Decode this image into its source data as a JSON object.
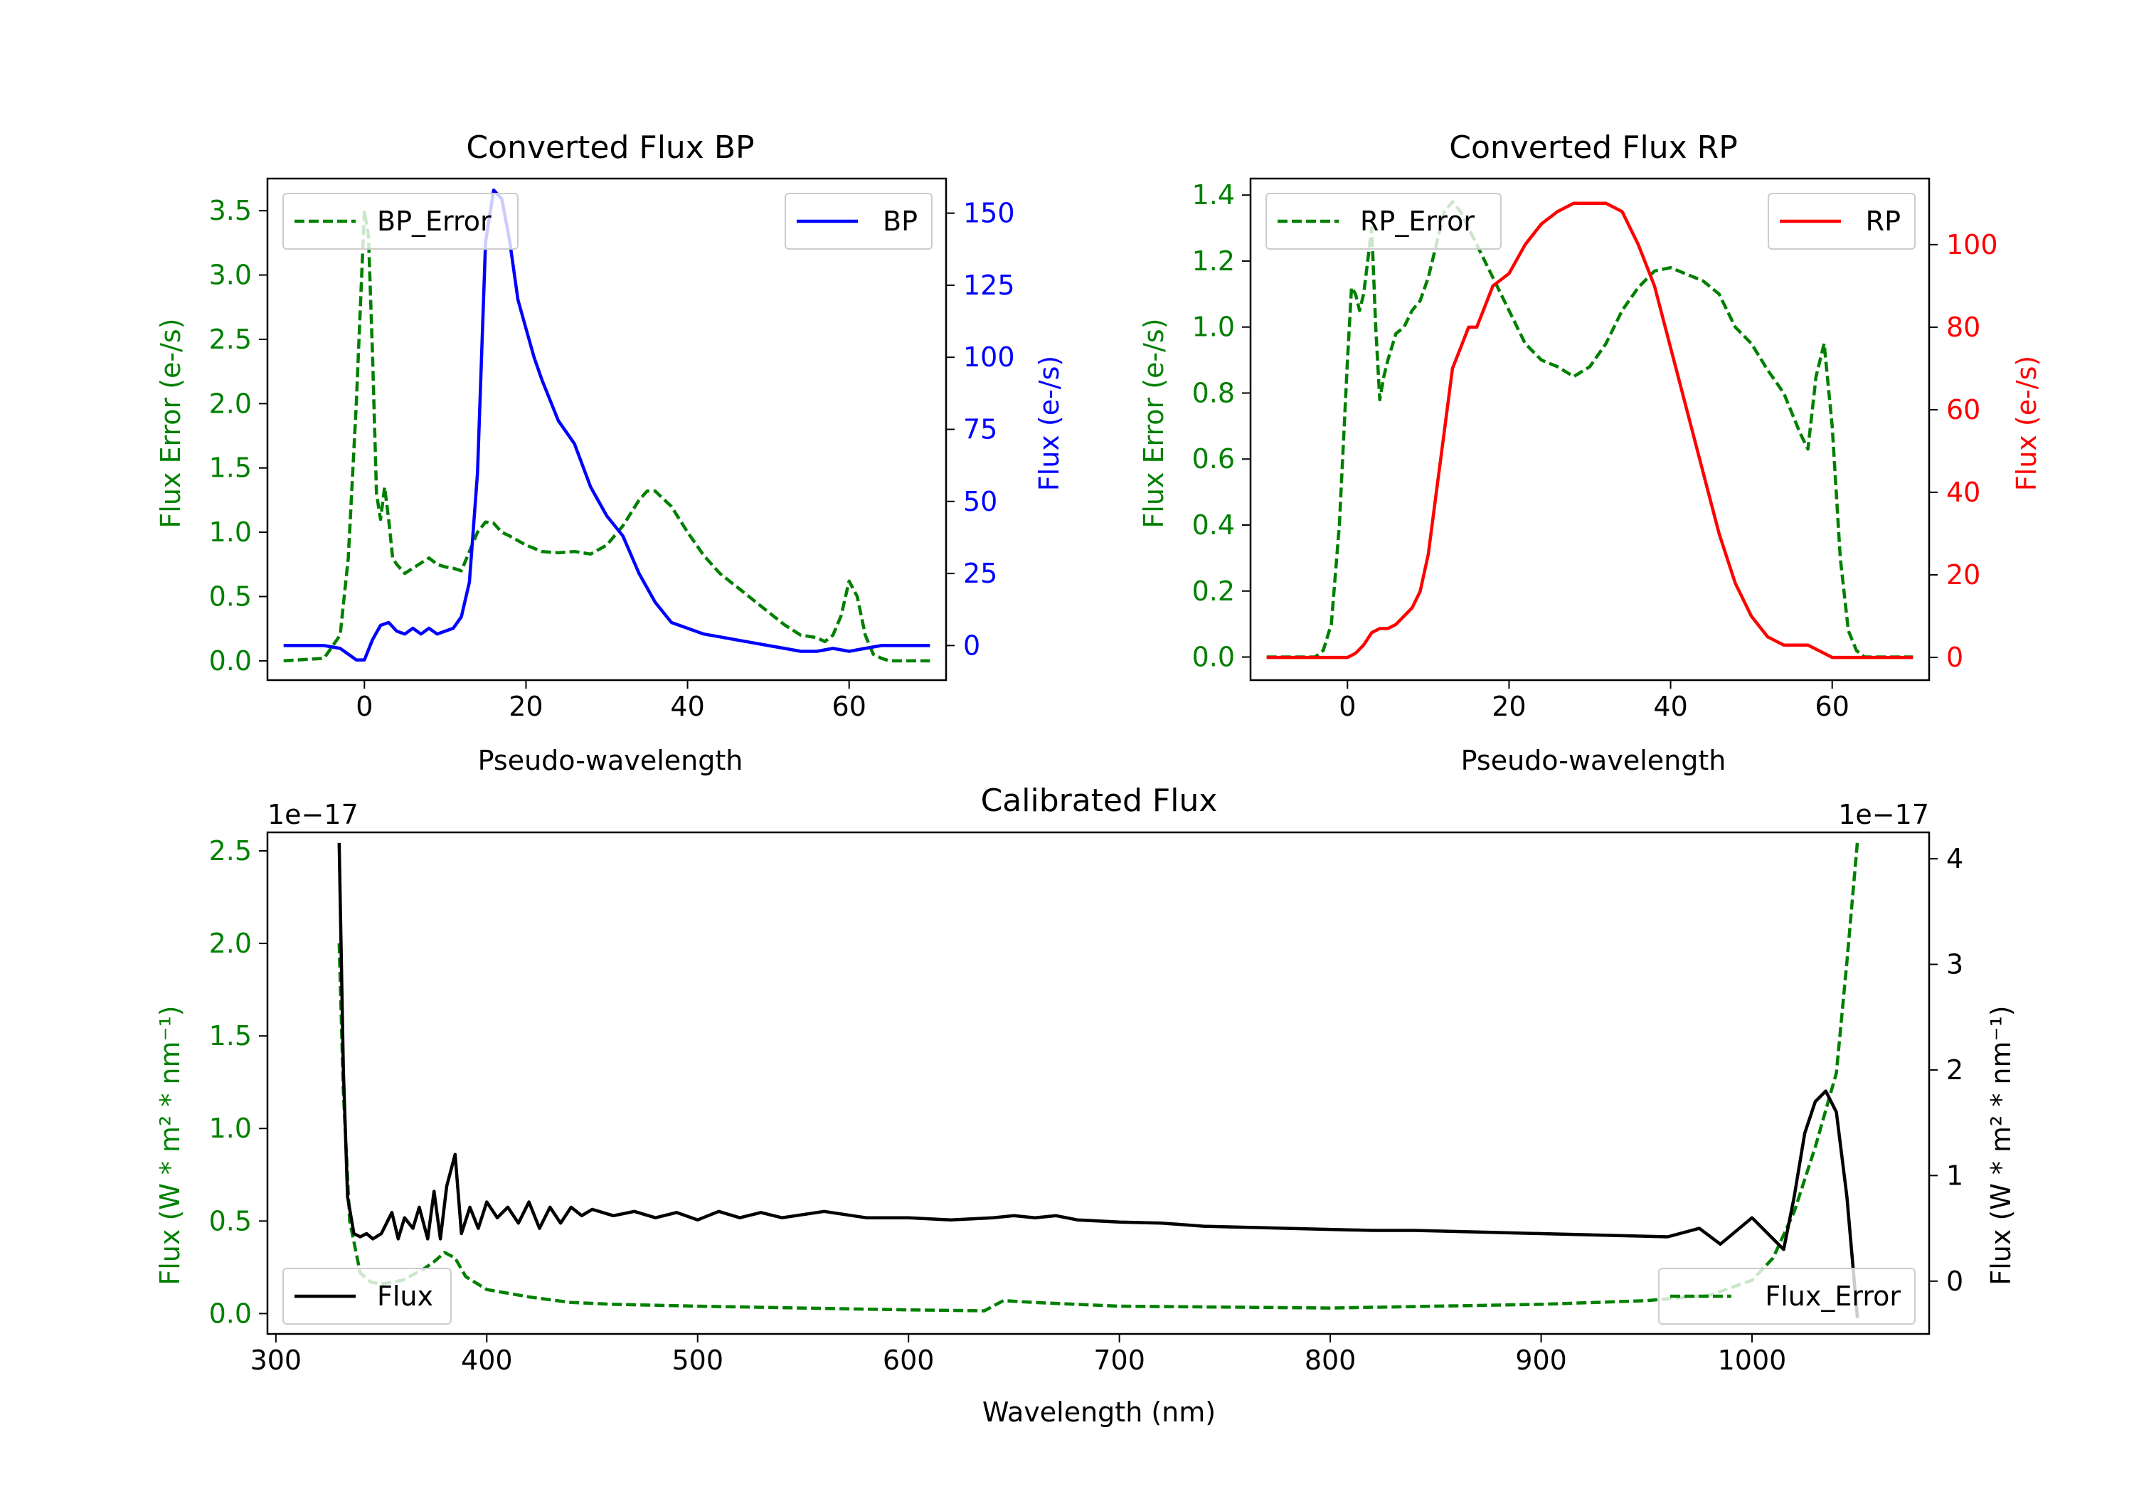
{
  "chart_data": [
    {
      "id": "bp",
      "type": "line",
      "title": "Converted Flux BP",
      "xlabel": "Pseudo-wavelength",
      "ylabel_left": "Flux Error (e-/s)",
      "ylabel_right": "Flux (e-/s)",
      "xlim": [
        -12,
        72
      ],
      "ylim_left": [
        -0.15,
        3.75
      ],
      "ylim_right": [
        -12,
        162
      ],
      "xticks": [
        0,
        20,
        40,
        60
      ],
      "yticks_left": [
        0.0,
        0.5,
        1.0,
        1.5,
        2.0,
        2.5,
        3.0,
        3.5
      ],
      "yticks_right": [
        0,
        25,
        50,
        75,
        100,
        125,
        150
      ],
      "ytick_labels_left": [
        "0.0",
        "0.5",
        "1.0",
        "1.5",
        "2.0",
        "2.5",
        "3.0",
        "3.5"
      ],
      "ytick_labels_right": [
        "0",
        "25",
        "50",
        "75",
        "100",
        "125",
        "150"
      ],
      "left_color": "#008000",
      "right_color": "#0000ff",
      "series": [
        {
          "name": "BP_Error",
          "axis": "left",
          "color": "#008000",
          "style": "dashed",
          "legend_position": "upper-left",
          "x": [
            -10,
            -5,
            -3,
            -2,
            -1,
            0,
            0.5,
            1,
            1.5,
            2,
            2.5,
            3,
            3.5,
            4,
            5,
            6,
            7,
            8,
            9,
            10,
            11,
            12,
            13,
            14,
            15,
            16,
            17,
            18,
            20,
            22,
            24,
            26,
            28,
            30,
            32,
            34,
            35,
            36,
            38,
            40,
            42,
            44,
            46,
            48,
            50,
            52,
            54,
            56,
            57,
            58,
            59,
            60,
            61,
            62,
            63,
            64,
            65,
            70
          ],
          "y": [
            0.0,
            0.02,
            0.2,
            0.8,
            2.0,
            3.5,
            3.3,
            2.4,
            1.3,
            1.1,
            1.35,
            1.1,
            0.8,
            0.75,
            0.68,
            0.72,
            0.76,
            0.8,
            0.75,
            0.73,
            0.72,
            0.7,
            0.85,
            1.0,
            1.08,
            1.07,
            1.0,
            0.97,
            0.9,
            0.85,
            0.84,
            0.85,
            0.83,
            0.9,
            1.05,
            1.25,
            1.32,
            1.32,
            1.2,
            1.0,
            0.82,
            0.68,
            0.58,
            0.48,
            0.38,
            0.28,
            0.2,
            0.18,
            0.15,
            0.2,
            0.35,
            0.62,
            0.5,
            0.2,
            0.05,
            0.02,
            0.0,
            0.0
          ]
        },
        {
          "name": "BP",
          "axis": "right",
          "color": "#0000ff",
          "style": "solid",
          "legend_position": "upper-right",
          "x": [
            -10,
            -5,
            -3,
            -2,
            -1,
            0,
            1,
            2,
            3,
            4,
            5,
            6,
            7,
            8,
            9,
            10,
            11,
            12,
            13,
            14,
            15,
            16,
            17,
            18,
            19,
            20,
            21,
            22,
            24,
            26,
            28,
            30,
            32,
            34,
            36,
            38,
            40,
            42,
            44,
            46,
            48,
            50,
            52,
            54,
            56,
            58,
            60,
            62,
            64,
            66,
            70
          ],
          "y": [
            0,
            0,
            -1,
            -3,
            -5,
            -5,
            2,
            7,
            8,
            5,
            4,
            6,
            4,
            6,
            4,
            5,
            6,
            10,
            22,
            60,
            140,
            158,
            155,
            140,
            120,
            110,
            100,
            92,
            78,
            70,
            55,
            45,
            38,
            25,
            15,
            8,
            6,
            4,
            3,
            2,
            1,
            0,
            -1,
            -2,
            -2,
            -1,
            -2,
            -1,
            0,
            0,
            0
          ]
        }
      ]
    },
    {
      "id": "rp",
      "type": "line",
      "title": "Converted Flux RP",
      "xlabel": "Pseudo-wavelength",
      "ylabel_left": "Flux Error (e-/s)",
      "ylabel_right": "Flux (e-/s)",
      "xlim": [
        -12,
        72
      ],
      "ylim_left": [
        -0.07,
        1.45
      ],
      "ylim_right": [
        -5.5,
        116
      ],
      "xticks": [
        0,
        20,
        40,
        60
      ],
      "yticks_left": [
        0.0,
        0.2,
        0.4,
        0.6,
        0.8,
        1.0,
        1.2,
        1.4
      ],
      "yticks_right": [
        0,
        20,
        40,
        60,
        80,
        100
      ],
      "ytick_labels_left": [
        "0.0",
        "0.2",
        "0.4",
        "0.6",
        "0.8",
        "1.0",
        "1.2",
        "1.4"
      ],
      "ytick_labels_right": [
        "0",
        "20",
        "40",
        "60",
        "80",
        "100"
      ],
      "left_color": "#008000",
      "right_color": "#ff0000",
      "series": [
        {
          "name": "RP_Error",
          "axis": "left",
          "color": "#008000",
          "style": "dashed",
          "legend_position": "upper-left",
          "x": [
            -10,
            -4,
            -3,
            -2,
            -1,
            0,
            0.5,
            1,
            1.5,
            2,
            2.5,
            3,
            3.5,
            4,
            4.5,
            5,
            6,
            7,
            8,
            9,
            10,
            11,
            12,
            13,
            14,
            15,
            16,
            18,
            20,
            22,
            24,
            26,
            28,
            30,
            32,
            34,
            36,
            38,
            40,
            42,
            44,
            46,
            48,
            50,
            52,
            54,
            56,
            57,
            58,
            59,
            60,
            61,
            62,
            63,
            64,
            65,
            70
          ],
          "y": [
            0.0,
            0.0,
            0.02,
            0.1,
            0.4,
            0.9,
            1.12,
            1.1,
            1.05,
            1.1,
            1.2,
            1.3,
            1.0,
            0.78,
            0.85,
            0.9,
            0.98,
            1.0,
            1.05,
            1.08,
            1.15,
            1.25,
            1.35,
            1.38,
            1.35,
            1.3,
            1.25,
            1.15,
            1.05,
            0.95,
            0.9,
            0.88,
            0.85,
            0.88,
            0.95,
            1.05,
            1.12,
            1.17,
            1.18,
            1.16,
            1.14,
            1.1,
            1.0,
            0.95,
            0.87,
            0.8,
            0.68,
            0.63,
            0.85,
            0.95,
            0.7,
            0.3,
            0.08,
            0.02,
            0.0,
            0.0,
            0.0
          ]
        },
        {
          "name": "RP",
          "axis": "right",
          "color": "#ff0000",
          "style": "solid",
          "legend_position": "upper-right",
          "x": [
            -10,
            -2,
            0,
            1,
            2,
            3,
            4,
            5,
            6,
            7,
            8,
            9,
            10,
            11,
            12,
            13,
            14,
            15,
            16,
            17,
            18,
            20,
            22,
            24,
            26,
            28,
            30,
            32,
            34,
            36,
            38,
            40,
            42,
            44,
            46,
            48,
            50,
            52,
            54,
            56,
            57,
            58,
            59,
            60,
            62,
            64,
            66,
            70
          ],
          "y": [
            0,
            0,
            0,
            1,
            3,
            6,
            7,
            7,
            8,
            10,
            12,
            16,
            25,
            40,
            55,
            70,
            75,
            80,
            80,
            85,
            90,
            93,
            100,
            105,
            108,
            110,
            110,
            110,
            108,
            100,
            90,
            75,
            60,
            45,
            30,
            18,
            10,
            5,
            3,
            3,
            3,
            2,
            1,
            0,
            0,
            0,
            0,
            0
          ]
        }
      ]
    },
    {
      "id": "cal",
      "type": "line",
      "title": "Calibrated Flux",
      "xlabel": "Wavelength (nm)",
      "ylabel_left": "Flux (W * m² * nm⁻¹)",
      "ylabel_right": "Flux (W * m² * nm⁻¹)",
      "offset_left": "1e−17",
      "offset_right": "1e−17",
      "xlim": [
        296,
        1084
      ],
      "ylim_left": [
        -0.11,
        2.6
      ],
      "ylim_right": [
        -0.5,
        4.25
      ],
      "xticks": [
        300,
        400,
        500,
        600,
        700,
        800,
        900,
        1000
      ],
      "yticks_left": [
        0.0,
        0.5,
        1.0,
        1.5,
        2.0,
        2.5
      ],
      "yticks_right": [
        0,
        1,
        2,
        3,
        4
      ],
      "ytick_labels_left": [
        "0.0",
        "0.5",
        "1.0",
        "1.5",
        "2.0",
        "2.5"
      ],
      "ytick_labels_right": [
        "0",
        "1",
        "2",
        "3",
        "4"
      ],
      "left_color": "#008000",
      "right_color": "#000000",
      "series": [
        {
          "name": "Flux_Error",
          "axis": "left",
          "color": "#008000",
          "style": "dashed",
          "legend_position": "lower-right",
          "x": [
            330,
            332,
            335,
            340,
            345,
            350,
            360,
            370,
            375,
            380,
            385,
            390,
            400,
            420,
            440,
            460,
            500,
            600,
            636,
            640,
            645,
            660,
            700,
            800,
            900,
            950,
            980,
            1000,
            1010,
            1020,
            1030,
            1040,
            1045,
            1050
          ],
          "y": [
            2.0,
            1.2,
            0.5,
            0.22,
            0.17,
            0.16,
            0.18,
            0.24,
            0.28,
            0.33,
            0.3,
            0.2,
            0.13,
            0.09,
            0.06,
            0.05,
            0.04,
            0.02,
            0.015,
            0.04,
            0.07,
            0.06,
            0.04,
            0.03,
            0.05,
            0.07,
            0.1,
            0.18,
            0.3,
            0.55,
            0.9,
            1.3,
            1.9,
            2.55
          ]
        },
        {
          "name": "Flux",
          "axis": "right",
          "color": "#000000",
          "style": "solid",
          "legend_position": "lower-left",
          "x": [
            330,
            332,
            334,
            337,
            340,
            343,
            346,
            350,
            355,
            358,
            361,
            365,
            368,
            372,
            375,
            378,
            381,
            385,
            388,
            392,
            396,
            400,
            405,
            410,
            415,
            420,
            425,
            430,
            435,
            440,
            445,
            450,
            460,
            470,
            480,
            490,
            500,
            510,
            520,
            530,
            540,
            560,
            580,
            600,
            620,
            640,
            650,
            660,
            670,
            680,
            700,
            720,
            740,
            760,
            780,
            800,
            820,
            840,
            860,
            880,
            900,
            920,
            940,
            960,
            975,
            985,
            1000,
            1010,
            1015,
            1020,
            1025,
            1030,
            1035,
            1040,
            1045,
            1050
          ],
          "y": [
            4.15,
            2.0,
            0.8,
            0.45,
            0.42,
            0.45,
            0.4,
            0.45,
            0.65,
            0.4,
            0.6,
            0.5,
            0.7,
            0.4,
            0.85,
            0.4,
            0.9,
            1.2,
            0.45,
            0.7,
            0.5,
            0.75,
            0.6,
            0.7,
            0.55,
            0.75,
            0.5,
            0.7,
            0.55,
            0.7,
            0.62,
            0.68,
            0.62,
            0.66,
            0.6,
            0.65,
            0.58,
            0.66,
            0.6,
            0.65,
            0.6,
            0.66,
            0.6,
            0.6,
            0.58,
            0.6,
            0.62,
            0.6,
            0.62,
            0.58,
            0.56,
            0.55,
            0.52,
            0.51,
            0.5,
            0.49,
            0.48,
            0.48,
            0.47,
            0.46,
            0.45,
            0.44,
            0.43,
            0.42,
            0.5,
            0.35,
            0.6,
            0.4,
            0.3,
            0.8,
            1.4,
            1.7,
            1.8,
            1.6,
            0.8,
            -0.35
          ]
        }
      ]
    }
  ]
}
